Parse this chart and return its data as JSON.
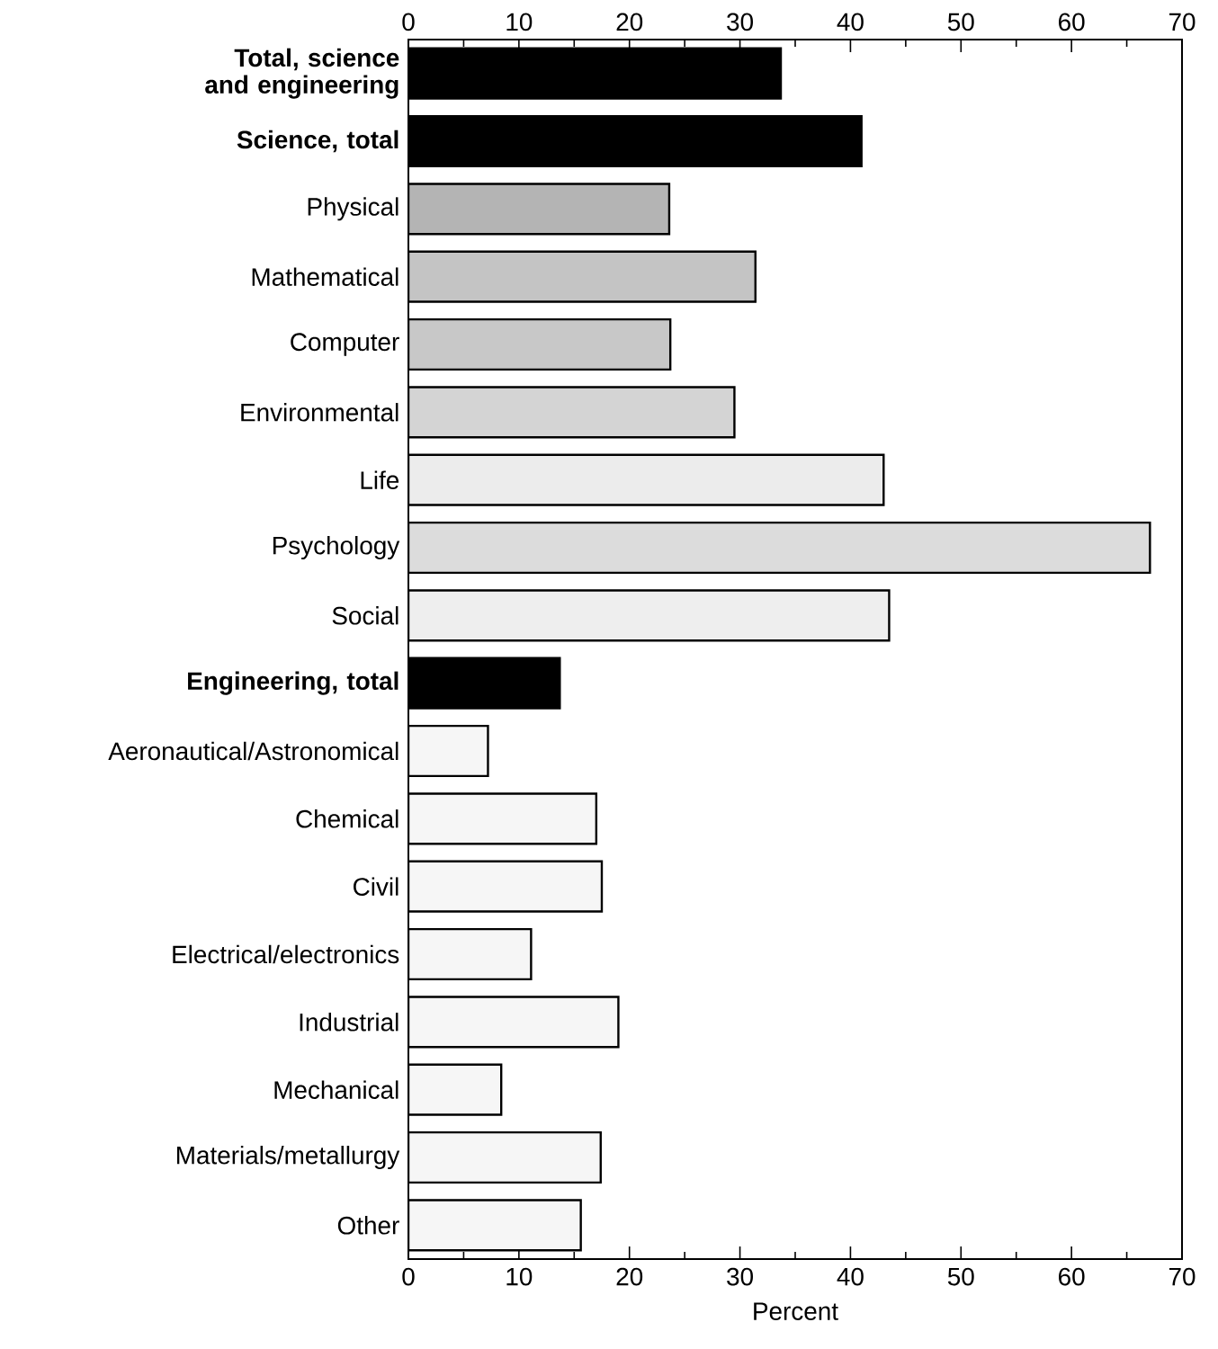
{
  "chart_data": {
    "type": "bar",
    "orientation": "horizontal",
    "xlabel": "Percent",
    "categories": [
      "Total, science and engineering",
      "Science, total",
      "Physical",
      "Mathematical",
      "Computer",
      "Environmental",
      "Life",
      "Psychology",
      "Social",
      "Engineering, total",
      "Aeronautical/Astronomical",
      "Chemical",
      "Civil",
      "Electrical/electronics",
      "Industrial",
      "Mechanical",
      "Materials/metallurgy",
      "Other"
    ],
    "values": [
      33.7,
      41.0,
      23.6,
      31.4,
      23.7,
      29.5,
      43.0,
      67.1,
      43.5,
      13.7,
      7.2,
      17.0,
      17.5,
      11.1,
      19.0,
      8.4,
      17.4,
      15.6
    ],
    "colors": [
      "#000000",
      "#000000",
      "#b4b4b4",
      "#c4c4c4",
      "#c8c8c8",
      "#d4d4d4",
      "#ececec",
      "#dcdcdc",
      "#eeeeee",
      "#000000",
      "#f6f6f6",
      "#f6f6f6",
      "#f6f6f6",
      "#f6f6f6",
      "#f6f6f6",
      "#f6f6f6",
      "#f6f6f6",
      "#f6f6f6"
    ],
    "xlim": [
      0,
      70
    ],
    "xticks": [
      0,
      10,
      20,
      30,
      40,
      50,
      60,
      70
    ],
    "x2lim": [
      0,
      70
    ],
    "x2ticks": [
      0,
      10,
      20,
      30,
      40,
      50,
      60,
      70
    ],
    "grid": false
  }
}
